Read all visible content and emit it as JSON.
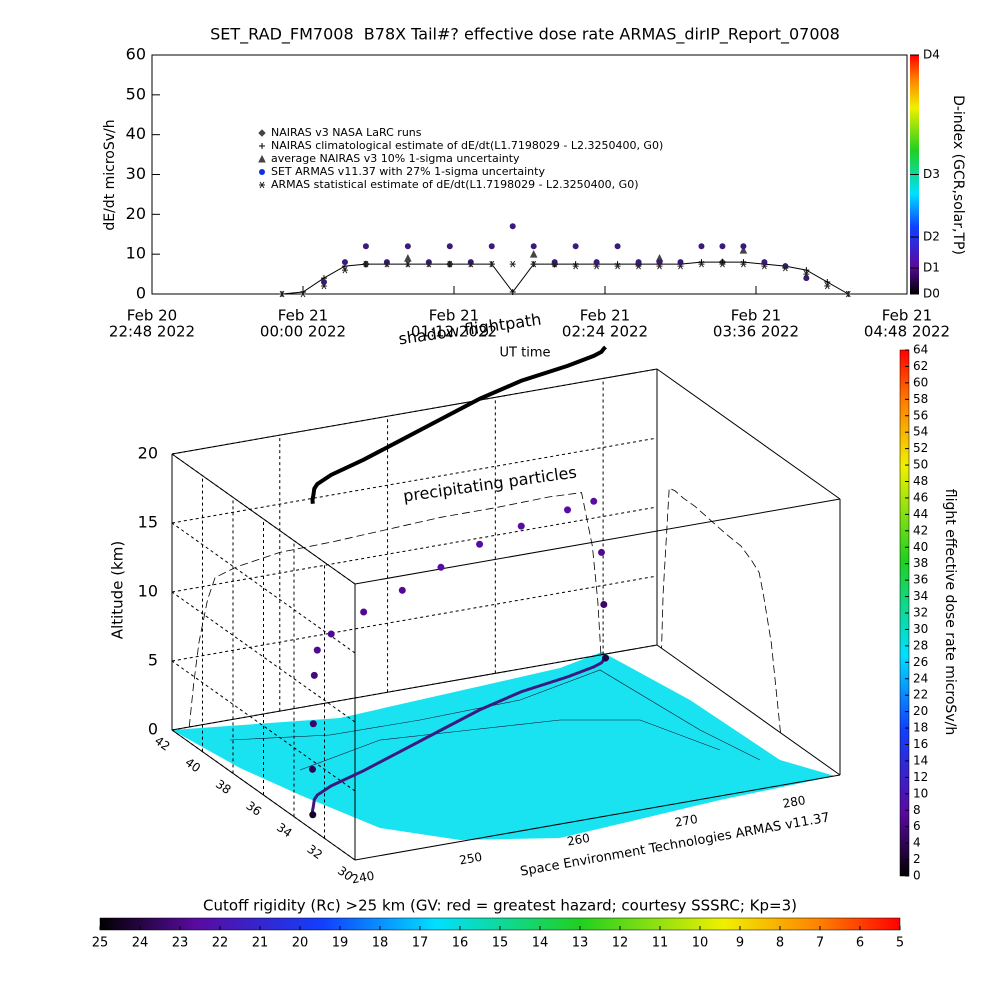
{
  "chart_data": [
    {
      "type": "timeseries",
      "title": "SET_RAD_FM7008  B78X Tail#? effective dose rate ARMAS_dirIP_Report_07008",
      "ylabel": "dE/dt microSv/h",
      "ylim": [
        0,
        60
      ],
      "yticks": [
        0,
        10,
        20,
        30,
        40,
        50,
        60
      ],
      "xlim": [
        "2022-02-20T22:48",
        "2022-02-21T04:48"
      ],
      "xticks": [
        {
          "value": "2022-02-20T22:48",
          "label": [
            "Feb 20",
            "22:48 2022"
          ]
        },
        {
          "value": "2022-02-21T00:00",
          "label": [
            "Feb 21",
            "00:00 2022"
          ]
        },
        {
          "value": "2022-02-21T01:12",
          "label": [
            "Feb 21",
            "01:12 2022"
          ]
        },
        {
          "value": "2022-02-21T02:24",
          "label": [
            "Feb 21",
            "02:24 2022"
          ]
        },
        {
          "value": "2022-02-21T03:36",
          "label": [
            "Feb 21",
            "03:36 2022"
          ]
        },
        {
          "value": "2022-02-21T04:48",
          "label": [
            "Feb 21",
            "04:48 2022"
          ]
        }
      ],
      "x": [
        "2022-02-20T23:50",
        "2022-02-21T00:00",
        "2022-02-21T00:10",
        "2022-02-21T00:20",
        "2022-02-21T00:30",
        "2022-02-21T00:40",
        "2022-02-21T00:50",
        "2022-02-21T01:00",
        "2022-02-21T01:10",
        "2022-02-21T01:20",
        "2022-02-21T01:30",
        "2022-02-21T01:40",
        "2022-02-21T01:50",
        "2022-02-21T02:00",
        "2022-02-21T02:10",
        "2022-02-21T02:20",
        "2022-02-21T02:30",
        "2022-02-21T02:40",
        "2022-02-21T02:50",
        "2022-02-21T03:00",
        "2022-02-21T03:10",
        "2022-02-21T03:20",
        "2022-02-21T03:30",
        "2022-02-21T03:40",
        "2022-02-21T03:50",
        "2022-02-21T04:00",
        "2022-02-21T04:10",
        "2022-02-21T04:20"
      ],
      "series": [
        {
          "name": "NAIRAS v3 NASA LaRC runs",
          "marker": "diamond",
          "color": "#444444",
          "values": [
            null,
            null,
            null,
            null,
            7.5,
            null,
            null,
            null,
            7.5,
            null,
            null,
            null,
            null,
            7.5,
            null,
            null,
            null,
            7.5,
            null,
            null,
            null,
            8,
            null,
            null,
            null,
            null,
            null,
            null
          ]
        },
        {
          "name": "NAIRAS climatological estimate of dE/dt(L1.7198029 - L2.3250400, G0)",
          "marker": "plus",
          "connect": true,
          "color": "#000000",
          "values": [
            0,
            0.5,
            4,
            7,
            7.5,
            7.5,
            7.5,
            7.5,
            7.5,
            7.5,
            7.5,
            0.5,
            7.5,
            7.5,
            7.5,
            7.5,
            7.5,
            7.5,
            7.5,
            7.5,
            8,
            8,
            8,
            7.5,
            7,
            6,
            3,
            0
          ]
        },
        {
          "name": "average NAIRAS v3 10% 1-sigma uncertainty",
          "marker": "triangle",
          "color": "#444444",
          "values": [
            null,
            null,
            null,
            null,
            null,
            null,
            9,
            null,
            null,
            null,
            null,
            null,
            10,
            null,
            null,
            null,
            null,
            null,
            9,
            null,
            null,
            null,
            11,
            null,
            null,
            null,
            null,
            null
          ]
        },
        {
          "name": "SET ARMAS v11.37 with 27% 1-sigma uncertainty",
          "marker": "circle",
          "color": "#3b1a7a",
          "legend_color": "#1030e0",
          "values": [
            null,
            null,
            3,
            8,
            12,
            8,
            12,
            8,
            12,
            8,
            12,
            17,
            12,
            8,
            12,
            8,
            12,
            8,
            8,
            8,
            12,
            12,
            12,
            8,
            7,
            4,
            null,
            null
          ]
        },
        {
          "name": "ARMAS statistical estimate of dE/dt(L1.7198029 - L2.3250400, G0)",
          "marker": "asterisk",
          "color": "#222222",
          "values": [
            0,
            0,
            2,
            6,
            7.5,
            7.5,
            7.5,
            7.5,
            7.5,
            7.5,
            7.5,
            7.5,
            7.5,
            7.5,
            7,
            7,
            7,
            7,
            7,
            7,
            7.5,
            7.5,
            7.5,
            7,
            6.5,
            5,
            2,
            0
          ]
        }
      ],
      "colorbar": {
        "label": "D-index (GCR,solar,TP)",
        "ticks": [
          {
            "value": 0,
            "label": "D0"
          },
          {
            "value": 6.5,
            "label": "D1"
          },
          {
            "value": 14.3,
            "label": "D2"
          },
          {
            "value": 30,
            "label": "D3"
          },
          {
            "value": 60,
            "label": "D4"
          }
        ]
      }
    },
    {
      "type": "scatter3d",
      "zlabel": "Altitude (km)",
      "annotations": [
        "shadow flightpath",
        "UT time",
        "precipitating particles"
      ],
      "credit": "Space Environment Technologies ARMAS v11.37",
      "xlim": [
        240,
        285
      ],
      "xticks": [
        240,
        250,
        260,
        270,
        280
      ],
      "ylim": [
        30,
        42
      ],
      "yticks": [
        42,
        40,
        38,
        36,
        34,
        32,
        30
      ],
      "zlim": [
        0,
        20
      ],
      "zticks": [
        0,
        5,
        10,
        15,
        20
      ],
      "lon": [
        241.6,
        242,
        242.5,
        243.3,
        244,
        246,
        250,
        255,
        260,
        265,
        270,
        275,
        278,
        279,
        279.5,
        279.8
      ],
      "lat": [
        33.9,
        34.2,
        34.5,
        35,
        35.3,
        35.8,
        36.5,
        37.5,
        38.5,
        39.5,
        40.3,
        40.8,
        41.2,
        41.4,
        41.6,
        41.7
      ],
      "alt": [
        0,
        3,
        6,
        9,
        10.5,
        11,
        11.5,
        11.6,
        11.8,
        12,
        12,
        12.1,
        12,
        8,
        4,
        0
      ],
      "dose": [
        2,
        4,
        5,
        6,
        7,
        7,
        7,
        7,
        8,
        8,
        8,
        8,
        8,
        7,
        5,
        3
      ],
      "colorbar": {
        "label": "flight effective dose rate microSv/h",
        "lim": [
          0,
          64
        ],
        "ticks": [
          0,
          2,
          4,
          6,
          8,
          10,
          12,
          14,
          16,
          18,
          20,
          22,
          24,
          26,
          28,
          30,
          32,
          34,
          36,
          38,
          40,
          42,
          44,
          46,
          48,
          50,
          52,
          54,
          56,
          58,
          60,
          62,
          64
        ]
      },
      "rc_colorbar": {
        "label": "Cutoff rigidity (Rc) >25 km (GV: red = greatest hazard; courtesy SSSRC; Kp=3)",
        "lim": [
          25,
          5
        ],
        "ticks": [
          25,
          24,
          23,
          22,
          21,
          20,
          19,
          18,
          17,
          16,
          15,
          14,
          13,
          12,
          11,
          10,
          9,
          8,
          7,
          6,
          5
        ]
      }
    }
  ]
}
